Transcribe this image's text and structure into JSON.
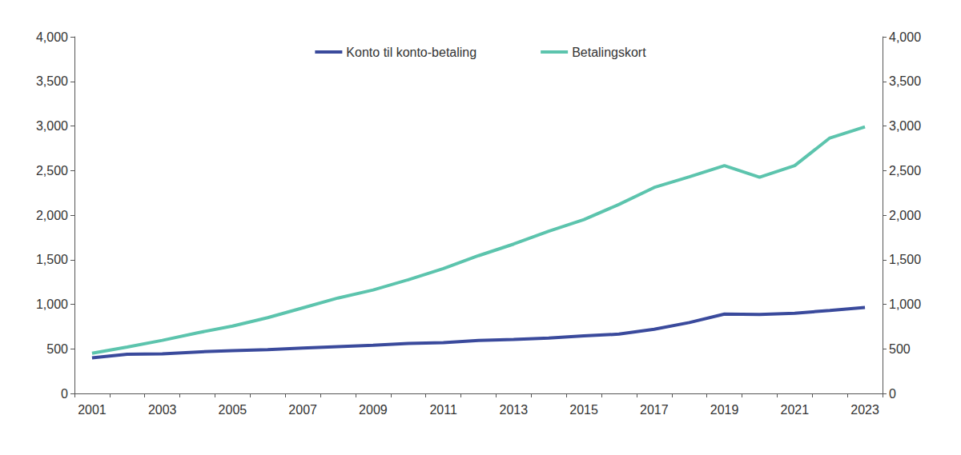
{
  "chart_data": {
    "type": "line",
    "categories": [
      "2001",
      null,
      "2003",
      null,
      "2005",
      null,
      "2007",
      null,
      "2009",
      null,
      "2011",
      null,
      "2013",
      null,
      "2015",
      null,
      "2017",
      null,
      "2019",
      null,
      "2021",
      null,
      "2023"
    ],
    "series": [
      {
        "name": "Konto til konto-betaling",
        "color": "#3a4a9c",
        "values": [
          400,
          440,
          445,
          465,
          480,
          490,
          510,
          525,
          540,
          560,
          570,
          595,
          605,
          620,
          645,
          665,
          720,
          795,
          890,
          885,
          900,
          930,
          965
        ]
      },
      {
        "name": "Betalingskort",
        "color": "#5cc4ad",
        "values": [
          450,
          520,
          595,
          680,
          755,
          850,
          960,
          1070,
          1160,
          1275,
          1400,
          1545,
          1675,
          1820,
          1950,
          2120,
          2310,
          2430,
          2555,
          2425,
          2555,
          2865,
          2990
        ]
      }
    ],
    "ylim": [
      0,
      4000
    ],
    "yticks": [
      0,
      500,
      1000,
      1500,
      2000,
      2500,
      3000,
      3500,
      4000
    ],
    "y2lim": [
      0,
      4000
    ],
    "y2ticks": [
      0,
      500,
      1000,
      1500,
      2000,
      2500,
      3000,
      3500,
      4000
    ],
    "grid": false,
    "legend": "top"
  }
}
